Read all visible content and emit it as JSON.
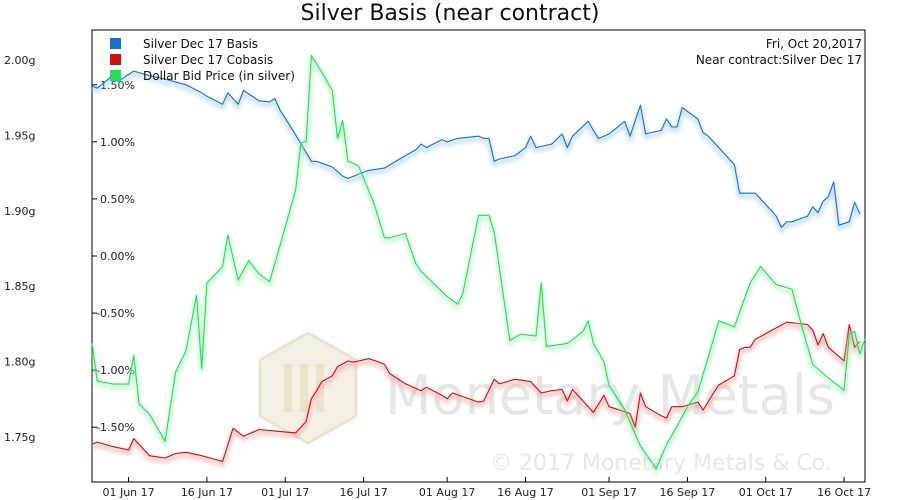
{
  "chart_data": {
    "type": "line",
    "title": "Silver Basis (near contract)",
    "info": {
      "date": "Fri, Oct 20,2017",
      "contract": "Near contract:Silver Dec 17"
    },
    "watermark": {
      "text": "Monetary Metals",
      "copyright": "© 2017 Monetary Metals & Co."
    },
    "x_range": [
      "2017-05-25",
      "2017-10-20"
    ],
    "x_ticks": [
      "01 Jun 17",
      "16 Jun 17",
      "01 Jul 17",
      "16 Jul 17",
      "01 Aug 17",
      "16 Aug 17",
      "01 Sep 17",
      "16 Sep 17",
      "01 Oct 17",
      "16 Oct 17"
    ],
    "x_tick_dates": [
      "2017-06-01",
      "2017-06-16",
      "2017-07-01",
      "2017-07-16",
      "2017-08-01",
      "2017-08-16",
      "2017-09-01",
      "2017-09-16",
      "2017-10-01",
      "2017-10-16"
    ],
    "y_left": {
      "ticks": [
        "2.00g",
        "1.95g",
        "1.90g",
        "1.85g",
        "1.80g",
        "1.75g"
      ],
      "values": [
        2.0,
        1.95,
        1.9,
        1.85,
        1.8,
        1.75
      ],
      "range": [
        1.72,
        2.02
      ]
    },
    "y_right": {
      "ticks": [
        "1.50%",
        "1.00%",
        "0.50%",
        "0.00%",
        "-0.50%",
        "-1.00%",
        "-1.50%"
      ],
      "values": [
        1.5,
        1.0,
        0.5,
        0.0,
        -0.5,
        -1.0,
        -1.5
      ],
      "range": [
        -1.98,
        1.98
      ]
    },
    "grid": false,
    "legend_position": "top-left",
    "series": [
      {
        "name": "Silver Dec 17 Basis",
        "color": "#1a6fc6",
        "axis": "right",
        "points": [
          [
            "2017-05-25",
            1.49
          ],
          [
            "2017-05-26",
            1.47
          ],
          [
            "2017-05-29",
            1.58
          ],
          [
            "2017-05-30",
            1.53
          ],
          [
            "2017-06-02",
            1.62
          ],
          [
            "2017-06-05",
            1.58
          ],
          [
            "2017-06-08",
            1.55
          ],
          [
            "2017-06-12",
            1.5
          ],
          [
            "2017-06-15",
            1.43
          ],
          [
            "2017-06-16",
            1.4
          ],
          [
            "2017-06-19",
            1.33
          ],
          [
            "2017-06-20",
            1.43
          ],
          [
            "2017-06-22",
            1.33
          ],
          [
            "2017-06-23",
            1.45
          ],
          [
            "2017-06-26",
            1.36
          ],
          [
            "2017-06-28",
            1.35
          ],
          [
            "2017-06-29",
            1.38
          ],
          [
            "2017-06-30",
            1.28
          ],
          [
            "2017-07-03",
            1.06
          ],
          [
            "2017-07-06",
            0.83
          ],
          [
            "2017-07-07",
            0.83
          ],
          [
            "2017-07-10",
            0.78
          ],
          [
            "2017-07-12",
            0.7
          ],
          [
            "2017-07-13",
            0.68
          ],
          [
            "2017-07-17",
            0.75
          ],
          [
            "2017-07-20",
            0.77
          ],
          [
            "2017-07-24",
            0.88
          ],
          [
            "2017-07-26",
            0.93
          ],
          [
            "2017-07-27",
            0.98
          ],
          [
            "2017-07-28",
            0.95
          ],
          [
            "2017-07-31",
            1.02
          ],
          [
            "2017-08-01",
            1.0
          ],
          [
            "2017-08-03",
            1.03
          ],
          [
            "2017-08-07",
            1.05
          ],
          [
            "2017-08-08",
            1.03
          ],
          [
            "2017-08-09",
            1.03
          ],
          [
            "2017-08-10",
            0.83
          ],
          [
            "2017-08-11",
            0.85
          ],
          [
            "2017-08-14",
            0.88
          ],
          [
            "2017-08-16",
            0.95
          ],
          [
            "2017-08-17",
            1.05
          ],
          [
            "2017-08-18",
            0.95
          ],
          [
            "2017-08-21",
            0.98
          ],
          [
            "2017-08-23",
            1.07
          ],
          [
            "2017-08-24",
            0.95
          ],
          [
            "2017-08-25",
            1.05
          ],
          [
            "2017-08-28",
            1.18
          ],
          [
            "2017-08-29",
            1.1
          ],
          [
            "2017-08-30",
            1.03
          ],
          [
            "2017-08-31",
            1.05
          ],
          [
            "2017-09-01",
            1.07
          ],
          [
            "2017-09-04",
            1.18
          ],
          [
            "2017-09-05",
            1.05
          ],
          [
            "2017-09-07",
            1.32
          ],
          [
            "2017-09-08",
            1.07
          ],
          [
            "2017-09-11",
            1.1
          ],
          [
            "2017-09-12",
            1.2
          ],
          [
            "2017-09-13",
            1.13
          ],
          [
            "2017-09-14",
            1.13
          ],
          [
            "2017-09-15",
            1.3
          ],
          [
            "2017-09-18",
            1.2
          ],
          [
            "2017-09-19",
            1.08
          ],
          [
            "2017-09-20",
            1.05
          ],
          [
            "2017-09-22",
            0.95
          ],
          [
            "2017-09-25",
            0.8
          ],
          [
            "2017-09-26",
            0.55
          ],
          [
            "2017-09-27",
            0.55
          ],
          [
            "2017-09-29",
            0.55
          ],
          [
            "2017-10-02",
            0.4
          ],
          [
            "2017-10-03",
            0.35
          ],
          [
            "2017-10-04",
            0.25
          ],
          [
            "2017-10-05",
            0.3
          ],
          [
            "2017-10-06",
            0.3
          ],
          [
            "2017-10-09",
            0.35
          ],
          [
            "2017-10-10",
            0.43
          ],
          [
            "2017-10-11",
            0.38
          ],
          [
            "2017-10-12",
            0.48
          ],
          [
            "2017-10-13",
            0.52
          ],
          [
            "2017-10-14",
            0.65
          ],
          [
            "2017-10-15",
            0.27
          ],
          [
            "2017-10-17",
            0.3
          ],
          [
            "2017-10-18",
            0.47
          ],
          [
            "2017-10-19",
            0.37
          ]
        ]
      },
      {
        "name": "Silver Dec 17 Cobasis",
        "color": "#cc1111",
        "axis": "right",
        "points": [
          [
            "2017-05-25",
            -1.65
          ],
          [
            "2017-05-26",
            -1.63
          ],
          [
            "2017-05-29",
            -1.67
          ],
          [
            "2017-06-01",
            -1.7
          ],
          [
            "2017-06-02",
            -1.6
          ],
          [
            "2017-06-05",
            -1.75
          ],
          [
            "2017-06-08",
            -1.77
          ],
          [
            "2017-06-10",
            -1.73
          ],
          [
            "2017-06-12",
            -1.72
          ],
          [
            "2017-06-15",
            -1.75
          ],
          [
            "2017-06-19",
            -1.8
          ],
          [
            "2017-06-21",
            -1.51
          ],
          [
            "2017-06-23",
            -1.58
          ],
          [
            "2017-06-26",
            -1.52
          ],
          [
            "2017-06-28",
            -1.53
          ],
          [
            "2017-07-03",
            -1.55
          ],
          [
            "2017-07-05",
            -1.45
          ],
          [
            "2017-07-06",
            -1.25
          ],
          [
            "2017-07-07",
            -1.18
          ],
          [
            "2017-07-08",
            -1.1
          ],
          [
            "2017-07-10",
            -1.05
          ],
          [
            "2017-07-11",
            -0.97
          ],
          [
            "2017-07-13",
            -0.92
          ],
          [
            "2017-07-14",
            -0.93
          ],
          [
            "2017-07-17",
            -0.9
          ],
          [
            "2017-07-19",
            -0.93
          ],
          [
            "2017-07-20",
            -0.95
          ],
          [
            "2017-07-21",
            -1.03
          ],
          [
            "2017-07-24",
            -1.12
          ],
          [
            "2017-07-27",
            -1.18
          ],
          [
            "2017-07-28",
            -1.15
          ],
          [
            "2017-07-31",
            -1.22
          ],
          [
            "2017-08-01",
            -1.25
          ],
          [
            "2017-08-02",
            -1.2
          ],
          [
            "2017-08-07",
            -1.28
          ],
          [
            "2017-08-08",
            -1.27
          ],
          [
            "2017-08-10",
            -1.08
          ],
          [
            "2017-08-11",
            -1.12
          ],
          [
            "2017-08-14",
            -1.08
          ],
          [
            "2017-08-17",
            -1.1
          ],
          [
            "2017-08-19",
            -1.2
          ],
          [
            "2017-08-21",
            -1.18
          ],
          [
            "2017-08-23",
            -1.17
          ],
          [
            "2017-08-24",
            -1.27
          ],
          [
            "2017-08-25",
            -1.17
          ],
          [
            "2017-08-29",
            -1.37
          ],
          [
            "2017-08-31",
            -1.22
          ],
          [
            "2017-09-01",
            -1.32
          ],
          [
            "2017-09-05",
            -1.38
          ],
          [
            "2017-09-06",
            -1.5
          ],
          [
            "2017-09-07",
            -1.2
          ],
          [
            "2017-09-08",
            -1.32
          ],
          [
            "2017-09-11",
            -1.4
          ],
          [
            "2017-09-12",
            -1.42
          ],
          [
            "2017-09-13",
            -1.32
          ],
          [
            "2017-09-15",
            -1.32
          ],
          [
            "2017-09-18",
            -1.28
          ],
          [
            "2017-09-19",
            -1.35
          ],
          [
            "2017-09-21",
            -1.2
          ],
          [
            "2017-09-22",
            -1.13
          ],
          [
            "2017-09-25",
            -1.05
          ],
          [
            "2017-09-26",
            -0.82
          ],
          [
            "2017-09-27",
            -0.8
          ],
          [
            "2017-09-28",
            -0.8
          ],
          [
            "2017-09-29",
            -0.73
          ],
          [
            "2017-10-03",
            -0.63
          ],
          [
            "2017-10-05",
            -0.58
          ],
          [
            "2017-10-09",
            -0.6
          ],
          [
            "2017-10-10",
            -0.65
          ],
          [
            "2017-10-11",
            -0.78
          ],
          [
            "2017-10-12",
            -0.68
          ],
          [
            "2017-10-13",
            -0.8
          ],
          [
            "2017-10-16",
            -0.92
          ],
          [
            "2017-10-17",
            -0.6
          ],
          [
            "2017-10-18",
            -0.8
          ],
          [
            "2017-10-19",
            -0.75
          ]
        ]
      },
      {
        "name": "Dollar Bid Price (in silver)",
        "color": "#22dd55",
        "axis": "left",
        "points": [
          [
            "2017-05-25",
            1.812
          ],
          [
            "2017-05-26",
            1.787
          ],
          [
            "2017-05-29",
            1.785
          ],
          [
            "2017-06-01",
            1.785
          ],
          [
            "2017-06-02",
            1.804
          ],
          [
            "2017-06-03",
            1.772
          ],
          [
            "2017-06-05",
            1.765
          ],
          [
            "2017-06-08",
            1.747
          ],
          [
            "2017-06-10",
            1.793
          ],
          [
            "2017-06-12",
            1.807
          ],
          [
            "2017-06-14",
            1.844
          ],
          [
            "2017-06-15",
            1.795
          ],
          [
            "2017-06-16",
            1.852
          ],
          [
            "2017-06-19",
            1.863
          ],
          [
            "2017-06-20",
            1.884
          ],
          [
            "2017-06-22",
            1.854
          ],
          [
            "2017-06-24",
            1.867
          ],
          [
            "2017-06-26",
            1.858
          ],
          [
            "2017-06-28",
            1.853
          ],
          [
            "2017-06-30",
            1.877
          ],
          [
            "2017-07-03",
            1.914
          ],
          [
            "2017-07-04",
            1.945
          ],
          [
            "2017-07-05",
            1.946
          ],
          [
            "2017-07-06",
            2.003
          ],
          [
            "2017-07-08",
            1.992
          ],
          [
            "2017-07-10",
            1.98
          ],
          [
            "2017-07-11",
            1.948
          ],
          [
            "2017-07-12",
            1.96
          ],
          [
            "2017-07-13",
            1.933
          ],
          [
            "2017-07-15",
            1.93
          ],
          [
            "2017-07-18",
            1.905
          ],
          [
            "2017-07-20",
            1.882
          ],
          [
            "2017-07-21",
            1.882
          ],
          [
            "2017-07-24",
            1.885
          ],
          [
            "2017-07-26",
            1.865
          ],
          [
            "2017-07-27",
            1.86
          ],
          [
            "2017-08-01",
            1.843
          ],
          [
            "2017-08-03",
            1.838
          ],
          [
            "2017-08-04",
            1.845
          ],
          [
            "2017-08-07",
            1.897
          ],
          [
            "2017-08-09",
            1.897
          ],
          [
            "2017-08-10",
            1.886
          ],
          [
            "2017-08-13",
            1.814
          ],
          [
            "2017-08-15",
            1.818
          ],
          [
            "2017-08-18",
            1.817
          ],
          [
            "2017-08-19",
            1.852
          ],
          [
            "2017-08-20",
            1.81
          ],
          [
            "2017-08-24",
            1.812
          ],
          [
            "2017-08-27",
            1.82
          ],
          [
            "2017-08-28",
            1.827
          ],
          [
            "2017-08-29",
            1.812
          ],
          [
            "2017-08-31",
            1.8
          ],
          [
            "2017-09-01",
            1.784
          ],
          [
            "2017-09-04",
            1.768
          ],
          [
            "2017-09-07",
            1.744
          ],
          [
            "2017-09-10",
            1.729
          ],
          [
            "2017-09-12",
            1.745
          ],
          [
            "2017-09-14",
            1.757
          ],
          [
            "2017-09-16",
            1.77
          ],
          [
            "2017-09-18",
            1.78
          ],
          [
            "2017-09-20",
            1.803
          ],
          [
            "2017-09-22",
            1.827
          ],
          [
            "2017-09-25",
            1.823
          ],
          [
            "2017-09-28",
            1.852
          ],
          [
            "2017-09-30",
            1.863
          ],
          [
            "2017-10-03",
            1.851
          ],
          [
            "2017-10-06",
            1.848
          ],
          [
            "2017-10-08",
            1.822
          ],
          [
            "2017-10-10",
            1.798
          ],
          [
            "2017-10-13",
            1.789
          ],
          [
            "2017-10-16",
            1.781
          ],
          [
            "2017-10-17",
            1.818
          ],
          [
            "2017-10-18",
            1.82
          ],
          [
            "2017-10-19",
            1.805
          ],
          [
            "2017-10-20",
            1.815
          ]
        ]
      }
    ]
  }
}
